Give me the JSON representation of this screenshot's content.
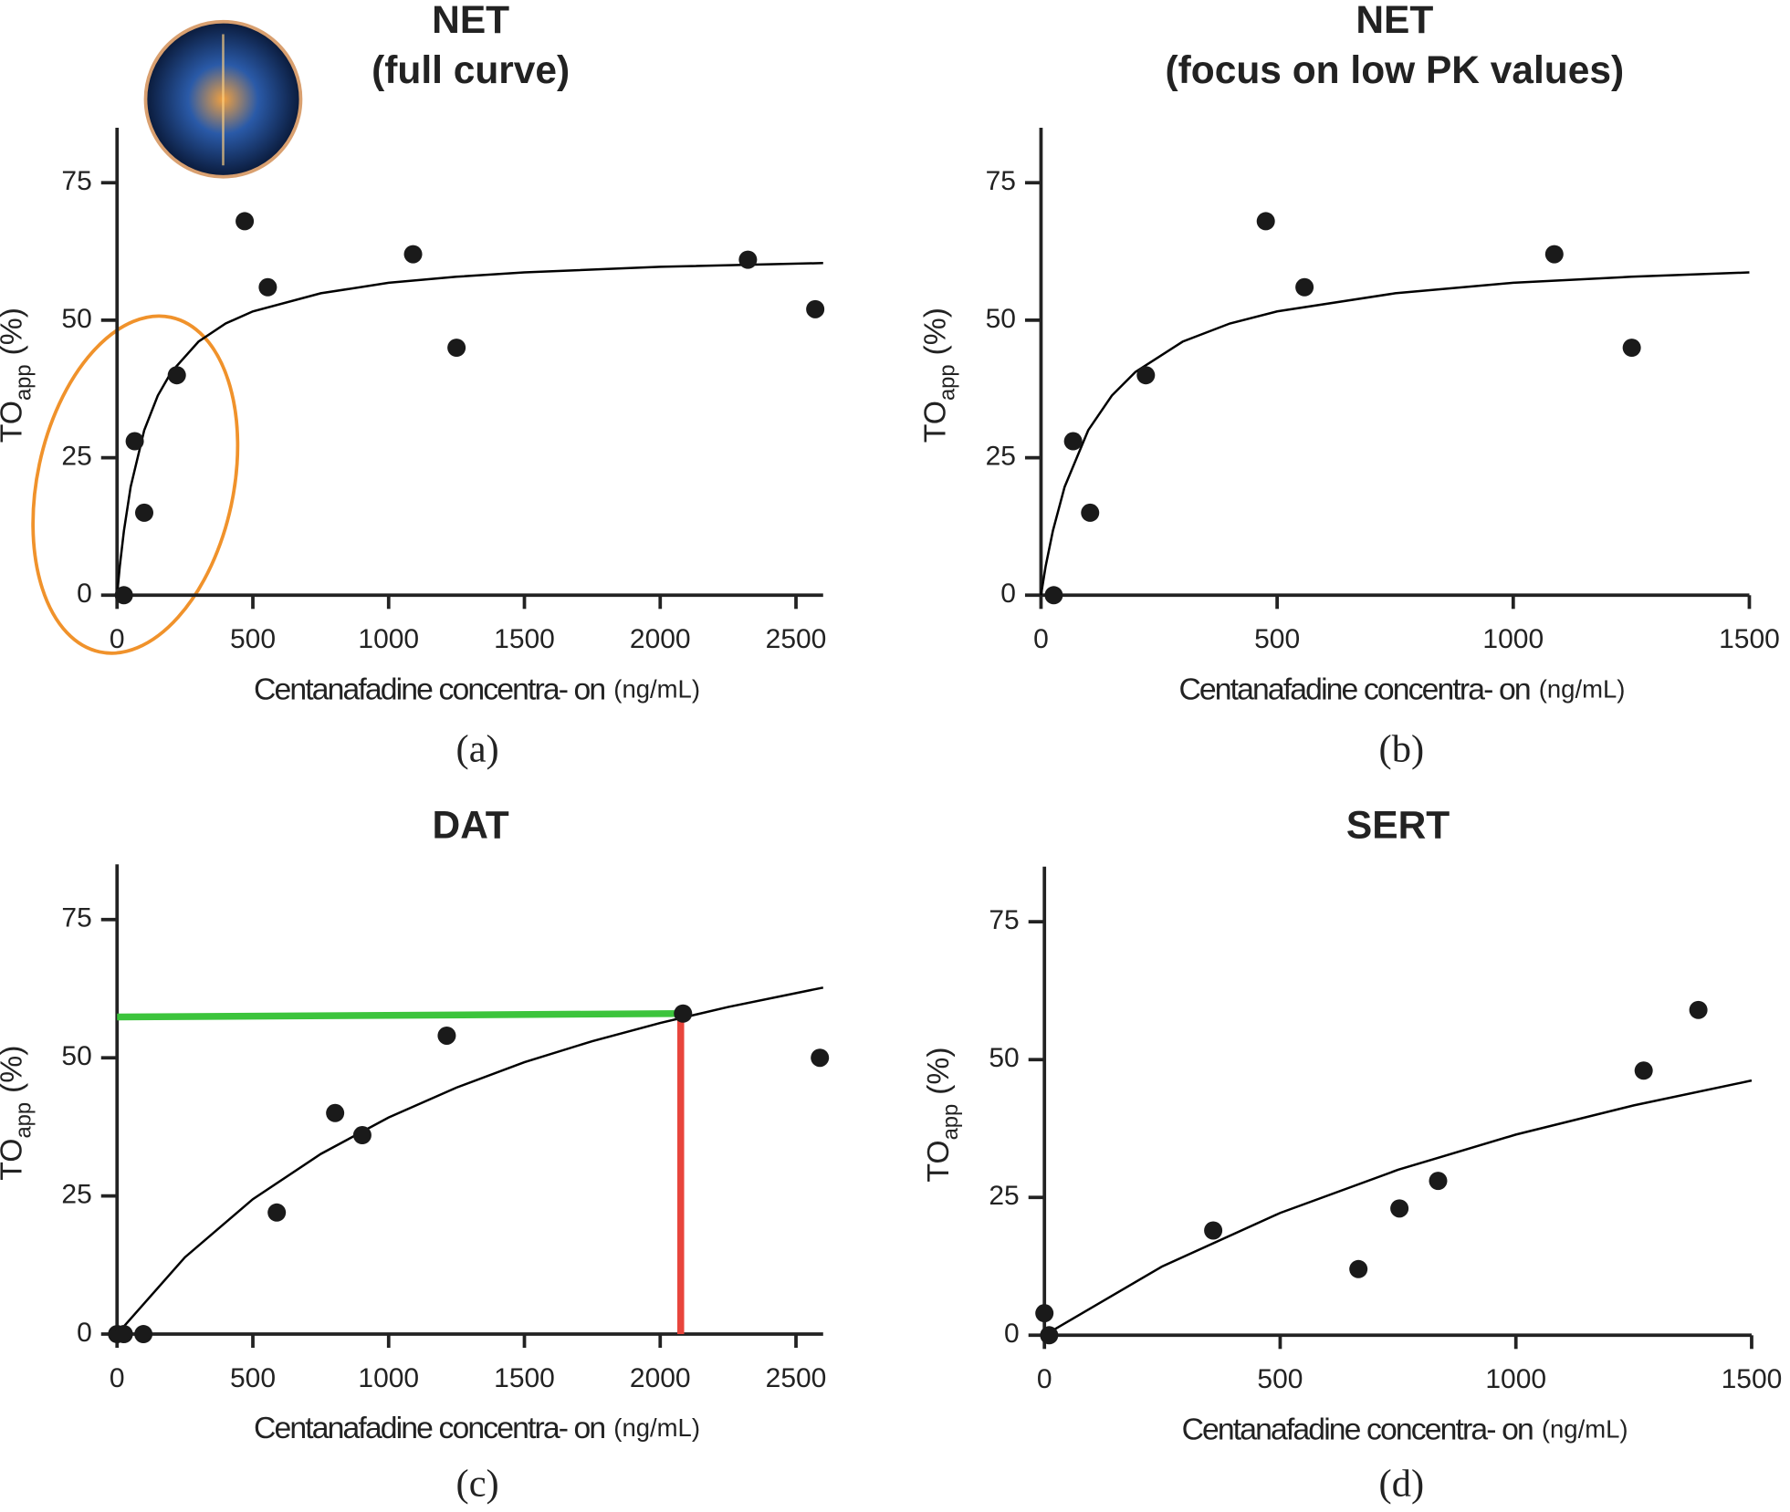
{
  "chart_data": [
    {
      "type": "scatter",
      "title": "NET",
      "subtitle": "(full curve)",
      "caption": "(a)",
      "xlabel": "Centanafadine concentra- on",
      "xlabel_unit": "(ng/mL)",
      "ylabel": "TO",
      "ylabel_sub": "app",
      "ylabel_unit": "(%)",
      "xlim": [
        0,
        2600
      ],
      "xticks": [
        0,
        500,
        1000,
        1500,
        2000,
        2500
      ],
      "ylim": [
        0,
        85
      ],
      "yticks": [
        0,
        25,
        50,
        75
      ],
      "points": {
        "color": "#1a1a1a",
        "x": [
          25,
          65,
          100,
          220,
          470,
          555,
          1090,
          1250,
          2323,
          2571
        ],
        "y": [
          0,
          28,
          15,
          40,
          68,
          56,
          62,
          45,
          61,
          52
        ]
      },
      "fit": {
        "color": "#000000",
        "x": [
          0,
          10,
          25,
          50,
          100,
          150,
          200,
          300,
          400,
          500,
          750,
          1000,
          1250,
          1500,
          2000,
          2600
        ],
        "y": [
          0,
          5.3,
          11.7,
          19.7,
          30.0,
          36.3,
          40.6,
          46.1,
          49.4,
          51.6,
          54.9,
          56.8,
          57.9,
          58.7,
          59.7,
          60.4
        ]
      }
    },
    {
      "type": "scatter",
      "title": "NET",
      "subtitle": "(focus on low PK values)",
      "caption": "(b)",
      "xlabel": "Centanafadine concentra- on",
      "xlabel_unit": "(ng/mL)",
      "ylabel": "TO",
      "ylabel_sub": "app",
      "ylabel_unit": "(%)",
      "xlim": [
        0,
        1500
      ],
      "xticks": [
        0,
        500,
        1000,
        1500
      ],
      "ylim": [
        0,
        85
      ],
      "yticks": [
        0,
        25,
        50,
        75
      ],
      "points": {
        "color": "#1a1a1a",
        "x": [
          27,
          68,
          104,
          222,
          476,
          558,
          1087,
          1251
        ],
        "y": [
          0,
          28,
          15,
          40,
          68,
          56,
          62,
          45
        ]
      },
      "fit": {
        "color": "#000000",
        "x": [
          0,
          10,
          25,
          50,
          100,
          150,
          200,
          300,
          400,
          500,
          750,
          1000,
          1250,
          1500
        ],
        "y": [
          0,
          5.3,
          11.7,
          19.7,
          30.0,
          36.3,
          40.6,
          46.1,
          49.4,
          51.6,
          54.9,
          56.8,
          57.9,
          58.7
        ]
      }
    },
    {
      "type": "scatter",
      "title": "DAT",
      "caption": "(c)",
      "xlabel": "Centanafadine concentra- on",
      "xlabel_unit": "(ng/mL)",
      "ylabel": "TO",
      "ylabel_sub": "app",
      "ylabel_unit": "(%)",
      "xlim": [
        0,
        2600
      ],
      "xticks": [
        0,
        500,
        1000,
        1500,
        2000,
        2500
      ],
      "ylim": [
        0,
        85
      ],
      "yticks": [
        0,
        25,
        50,
        75
      ],
      "points": {
        "color": "#1a1a1a",
        "x": [
          0,
          25,
          97,
          588,
          803,
          903,
          1214,
          2084,
          2588
        ],
        "y": [
          0,
          0,
          0,
          22,
          40,
          36,
          54,
          58,
          50
        ]
      },
      "fit": {
        "color": "#000000",
        "x": [
          0,
          250,
          500,
          750,
          1000,
          1250,
          1500,
          1750,
          2000,
          2250,
          2600
        ],
        "y": [
          0,
          13.9,
          24.4,
          32.6,
          39.2,
          44.6,
          49.2,
          53.0,
          56.3,
          59.2,
          62.7
        ]
      }
    },
    {
      "type": "scatter",
      "title": "SERT",
      "caption": "(d)",
      "xlabel": "Centanafadine concentra- on",
      "xlabel_unit": "(ng/mL)",
      "ylabel": "TO",
      "ylabel_sub": "app",
      "ylabel_unit": "(%)",
      "xlim": [
        0,
        1500
      ],
      "xticks": [
        0,
        500,
        1000,
        1500
      ],
      "ylim": [
        0,
        85
      ],
      "yticks": [
        0,
        25,
        50,
        75
      ],
      "points": {
        "color": "#1a1a1a",
        "x": [
          0,
          10,
          358,
          666,
          753,
          835,
          1271,
          1387
        ],
        "y": [
          4,
          0,
          19,
          12,
          23,
          28,
          48,
          59
        ]
      },
      "fit": {
        "color": "#000000",
        "x": [
          0,
          250,
          500,
          750,
          1000,
          1250,
          1500
        ],
        "y": [
          0,
          12.5,
          22.2,
          30.0,
          36.4,
          41.7,
          46.2
        ]
      }
    }
  ]
}
